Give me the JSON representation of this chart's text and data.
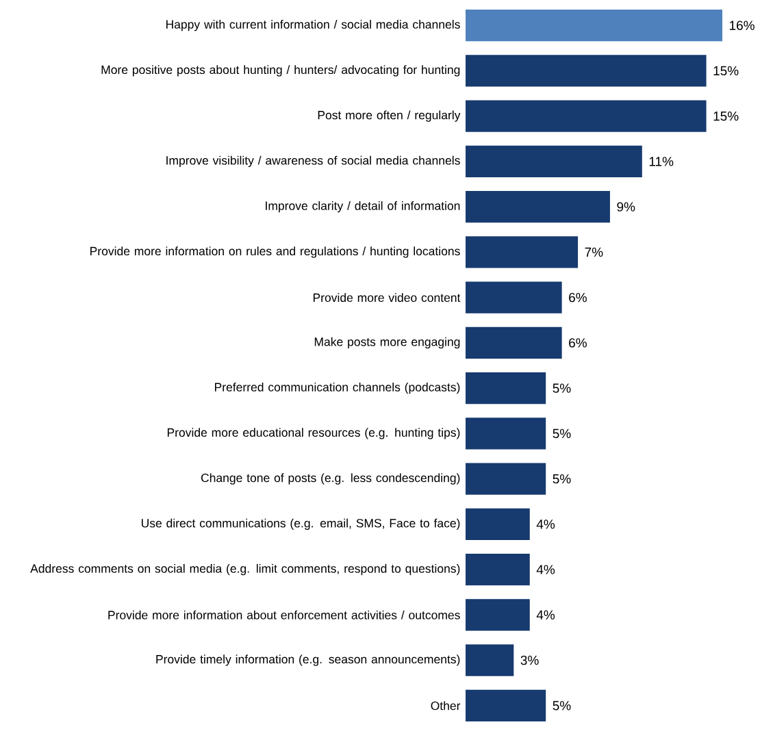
{
  "chart_data": {
    "type": "bar",
    "orientation": "horizontal",
    "data_labels": true,
    "categories": [
      "Happy with current information / social media channels",
      "More positive posts about hunting / hunters/ advocating for hunting",
      "Post more often / regularly",
      "Improve visibility / awareness of social media channels",
      "Improve clarity / detail of information",
      "Provide more information on rules and regulations / hunting locations",
      "Provide more video content",
      "Make posts more engaging",
      "Preferred communication channels (podcasts)",
      "Provide more educational resources (e.g. hunting tips)",
      "Change tone of posts (e.g. less condescending)",
      "Use direct communications (e.g. email, SMS, Face to face)",
      "Address comments on social media (e.g. limit comments, respond to questions)",
      "Provide more information about enforcement activities / outcomes",
      "Provide timely information (e.g. season announcements)",
      "Other"
    ],
    "values": [
      16,
      15,
      15,
      11,
      9,
      7,
      6,
      6,
      5,
      5,
      5,
      4,
      4,
      4,
      3,
      5
    ],
    "value_labels": [
      "16%",
      "15%",
      "15%",
      "11%",
      "9%",
      "7%",
      "6%",
      "6%",
      "5%",
      "5%",
      "5%",
      "4%",
      "4%",
      "4%",
      "3%",
      "5%"
    ],
    "colors": [
      "#4f81bd",
      "#173a6f",
      "#173a6f",
      "#173a6f",
      "#173a6f",
      "#173a6f",
      "#173a6f",
      "#173a6f",
      "#173a6f",
      "#173a6f",
      "#173a6f",
      "#173a6f",
      "#173a6f",
      "#173a6f",
      "#173a6f",
      "#173a6f"
    ]
  }
}
